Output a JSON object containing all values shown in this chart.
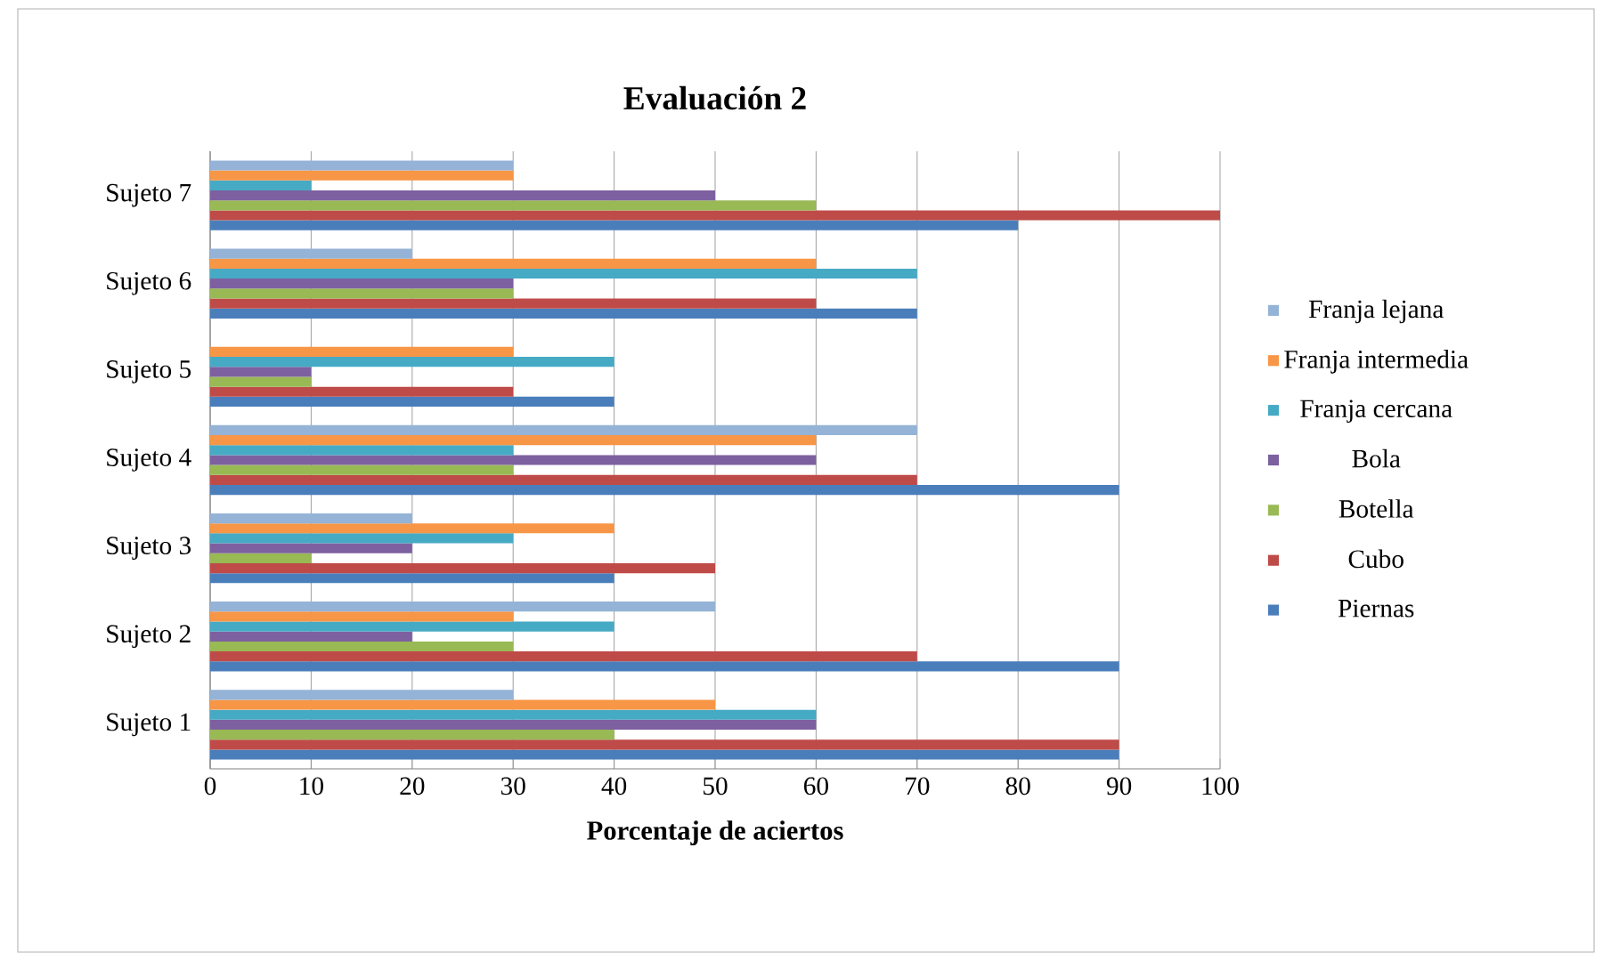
{
  "chart_data": {
    "type": "bar",
    "orientation": "horizontal",
    "title": "Evaluación 2",
    "xlabel": "Porcentaje de aciertos",
    "categories": [
      "Sujeto 7",
      "Sujeto 6",
      "Sujeto 5",
      "Sujeto 4",
      "Sujeto 3",
      "Sujeto 2",
      "Sujeto 1"
    ],
    "series": [
      {
        "name": "Piernas",
        "color": "#4a7ebb",
        "values": [
          80,
          70,
          40,
          90,
          40,
          90,
          90
        ]
      },
      {
        "name": "Cubo",
        "color": "#be4b48",
        "values": [
          100,
          60,
          30,
          70,
          50,
          70,
          90
        ]
      },
      {
        "name": "Botella",
        "color": "#98b954",
        "values": [
          60,
          30,
          10,
          30,
          10,
          30,
          40
        ]
      },
      {
        "name": "Bola",
        "color": "#7d60a0",
        "values": [
          50,
          30,
          10,
          60,
          20,
          20,
          60
        ]
      },
      {
        "name": "Franja cercana",
        "color": "#46aac5",
        "values": [
          10,
          70,
          40,
          30,
          30,
          40,
          60
        ]
      },
      {
        "name": "Franja intermedia",
        "color": "#f79646",
        "values": [
          30,
          60,
          30,
          60,
          40,
          30,
          50
        ]
      },
      {
        "name": "Franja lejana",
        "color": "#94b3d6",
        "values": [
          30,
          20,
          0,
          70,
          20,
          50,
          30
        ]
      }
    ],
    "xlim": [
      0,
      100
    ],
    "xticks": [
      0,
      10,
      20,
      30,
      40,
      50,
      60,
      70,
      80,
      90,
      100
    ],
    "grid": "x",
    "legend": "right"
  }
}
